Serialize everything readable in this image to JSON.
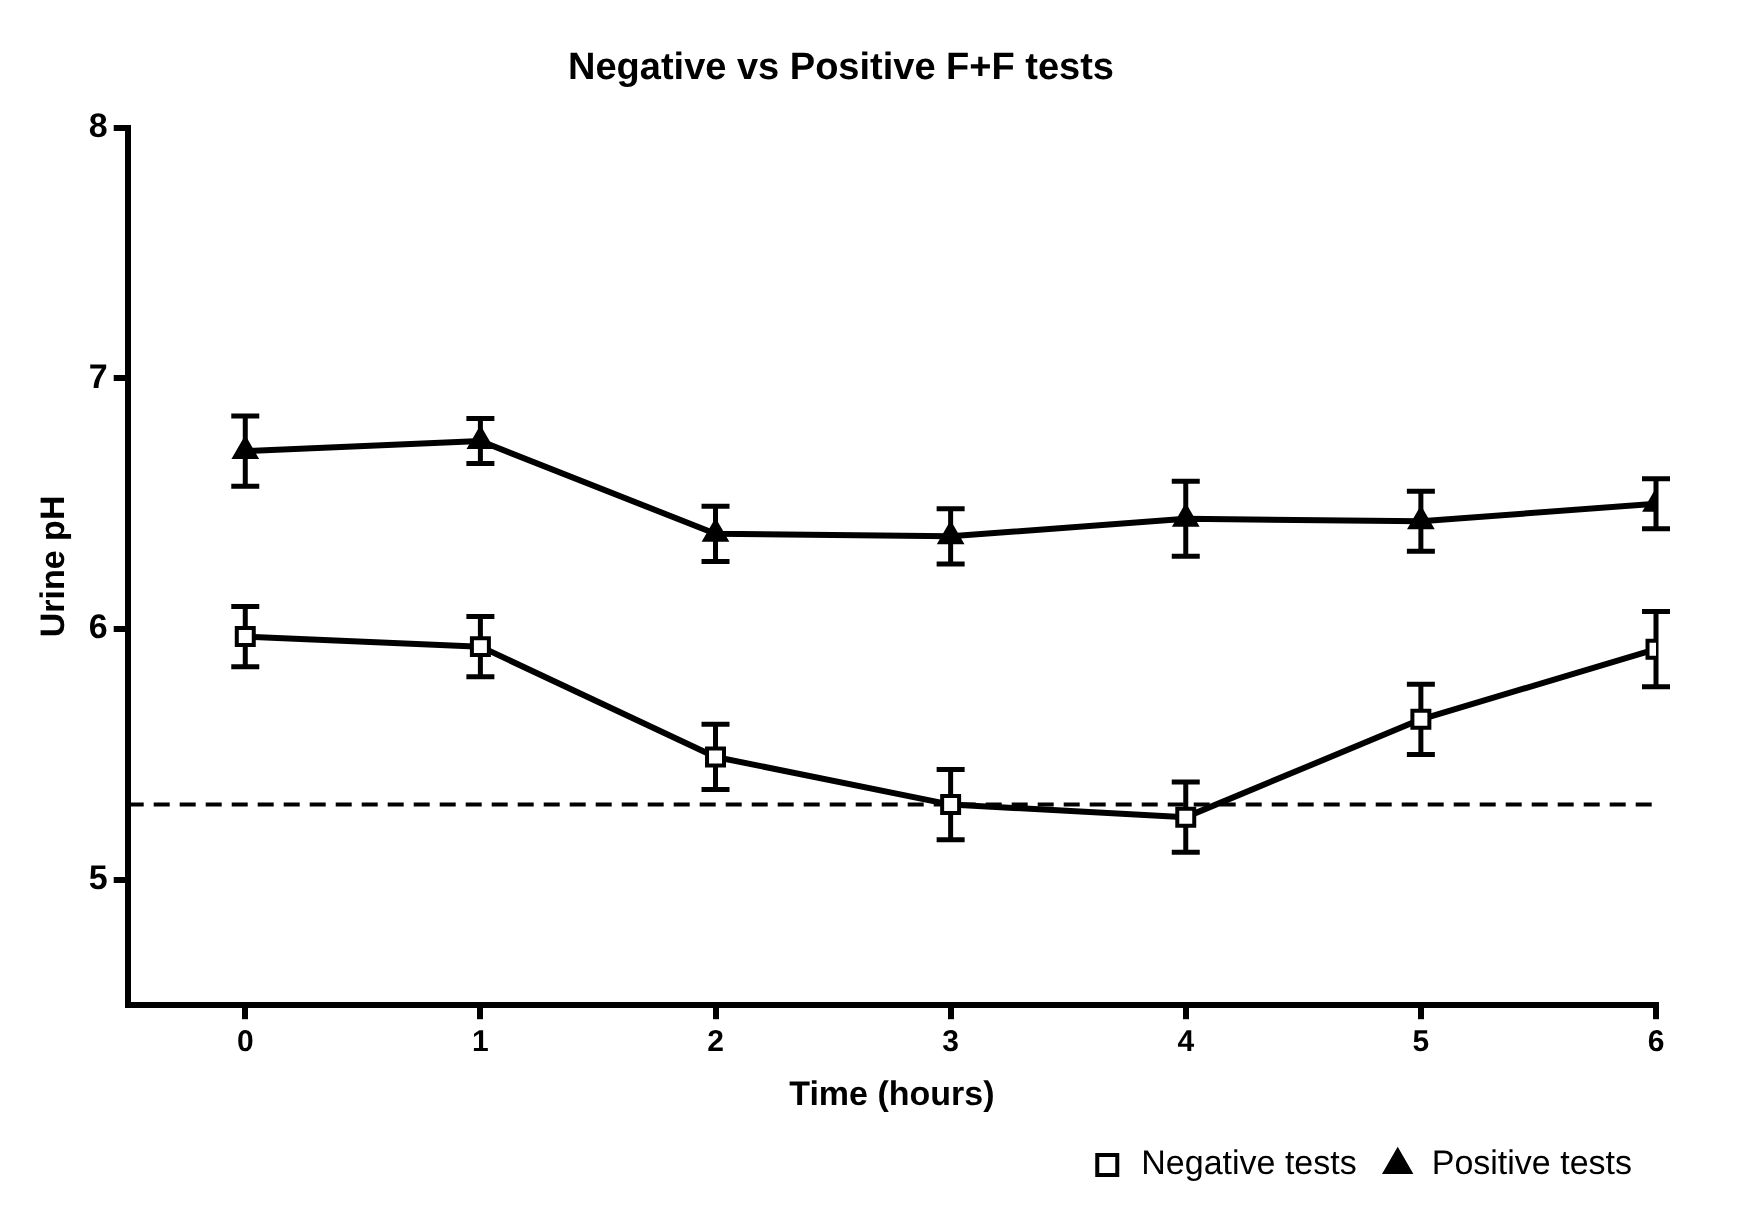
{
  "chart_data": {
    "type": "line",
    "title": "Negative vs Positive F+F tests",
    "xlabel": "Time (hours)",
    "ylabel": "Urine pH",
    "x": [
      0,
      1,
      2,
      3,
      4,
      5,
      6
    ],
    "series": [
      {
        "name": "Negative tests",
        "color": "#000000",
        "marker": "square",
        "values": [
          5.97,
          5.93,
          5.49,
          5.3,
          5.25,
          5.64,
          5.92
        ],
        "errors": [
          0.12,
          0.12,
          0.13,
          0.14,
          0.14,
          0.14,
          0.15
        ]
      },
      {
        "name": "Positive tests",
        "color": "#000000",
        "marker": "triangle",
        "values": [
          6.71,
          6.75,
          6.38,
          6.37,
          6.44,
          6.43,
          6.5
        ],
        "errors": [
          0.14,
          0.09,
          0.11,
          0.11,
          0.15,
          0.12,
          0.1
        ]
      }
    ],
    "xlim": [
      -0.5,
      6
    ],
    "xticks": [
      0,
      1,
      2,
      3,
      4,
      5,
      6
    ],
    "ylim": [
      4.5,
      8
    ],
    "yticks": [
      5,
      6,
      7,
      8
    ],
    "ref_lines": [
      {
        "axis": "y",
        "value": 5.3,
        "color": "#000000",
        "line_style": "dashed"
      }
    ],
    "grid": false,
    "legend": "bottom right",
    "line_style": "solid"
  }
}
